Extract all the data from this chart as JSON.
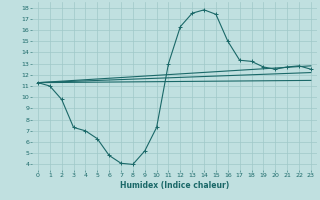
{
  "xlabel": "Humidex (Indice chaleur)",
  "bg_color": "#c0e0e0",
  "grid_color": "#a0c8c8",
  "line_color": "#1a6868",
  "xlim": [
    -0.5,
    23.5
  ],
  "ylim": [
    3.5,
    18.5
  ],
  "xticks": [
    0,
    1,
    2,
    3,
    4,
    5,
    6,
    7,
    8,
    9,
    10,
    11,
    12,
    13,
    14,
    15,
    16,
    17,
    18,
    19,
    20,
    21,
    22,
    23
  ],
  "yticks": [
    4,
    5,
    6,
    7,
    8,
    9,
    10,
    11,
    12,
    13,
    14,
    15,
    16,
    17,
    18
  ],
  "line1_x": [
    0,
    1,
    2,
    3,
    4,
    5,
    6,
    7,
    8,
    9,
    10,
    11,
    12,
    13,
    14,
    15,
    16,
    17,
    18,
    19,
    20,
    21,
    22,
    23
  ],
  "line1_y": [
    11.3,
    11.0,
    9.8,
    7.3,
    7.0,
    6.3,
    4.8,
    4.1,
    4.0,
    5.2,
    7.3,
    13.0,
    16.3,
    17.5,
    17.8,
    17.4,
    15.0,
    13.3,
    13.2,
    12.7,
    12.5,
    12.7,
    12.8,
    12.5
  ],
  "line2_x": [
    0,
    23
  ],
  "line2_y": [
    11.3,
    12.8
  ],
  "line3_x": [
    0,
    23
  ],
  "line3_y": [
    11.3,
    12.2
  ],
  "line4_x": [
    0,
    23
  ],
  "line4_y": [
    11.3,
    11.5
  ]
}
